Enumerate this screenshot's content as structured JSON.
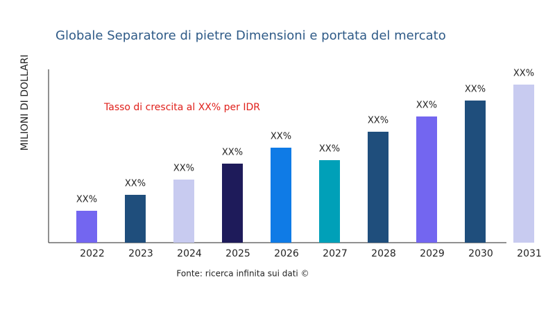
{
  "chart_data": {
    "type": "bar",
    "title": "Globale Separatore di pietre Dimensioni e portata del mercato",
    "y_label": "MILIONI DI DOLLARI",
    "annotation": "Tasso di crescita al XX% per IDR",
    "source": "Fonte: ricerca infinita sui dati ©",
    "categories": [
      "2022",
      "2023",
      "2024",
      "2025",
      "2026",
      "2027",
      "2028",
      "2029",
      "2030",
      "2031"
    ],
    "values": [
      46,
      69,
      91,
      114,
      137,
      119,
      160,
      182,
      205,
      228
    ],
    "value_labels": [
      "XX%",
      "XX%",
      "XX%",
      "XX%",
      "XX%",
      "XX%",
      "XX%",
      "XX%",
      "XX%",
      "XX%"
    ],
    "colors": [
      "#7366f0",
      "#1f4e7c",
      "#c8cbf0",
      "#1e1b5a",
      "#0f7be6",
      "#00a0b8",
      "#1f4e7c",
      "#7366f0",
      "#1f4e7c",
      "#c8cbf0"
    ],
    "ylim": [
      0,
      250
    ]
  }
}
